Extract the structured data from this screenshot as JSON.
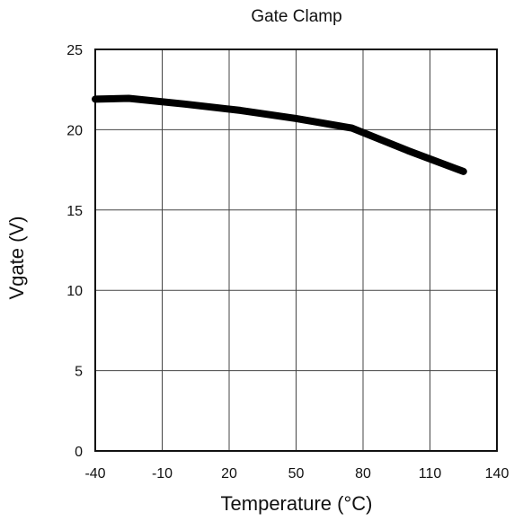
{
  "chart_data": {
    "type": "line",
    "title": "Gate Clamp",
    "xlabel": "Temperature (°C)",
    "ylabel": "Vgate (V)",
    "xlim": [
      -40,
      140
    ],
    "ylim": [
      0,
      25
    ],
    "x_ticks": [
      -40,
      -10,
      20,
      50,
      80,
      110,
      140
    ],
    "y_ticks": [
      0,
      5,
      10,
      15,
      20,
      25
    ],
    "x_tick_labels": [
      "-40",
      "-10",
      "20",
      "50",
      "80",
      "110",
      "140"
    ],
    "y_tick_labels": [
      "0",
      "5",
      "10",
      "15",
      "20",
      "25"
    ],
    "grid": true,
    "series": [
      {
        "x": [
          -40,
          -25,
          0,
          25,
          50,
          75,
          100,
          125
        ],
        "y": [
          21.9,
          21.95,
          21.6,
          21.2,
          20.7,
          20.1,
          18.7,
          17.4
        ],
        "color": "#000000"
      }
    ]
  }
}
